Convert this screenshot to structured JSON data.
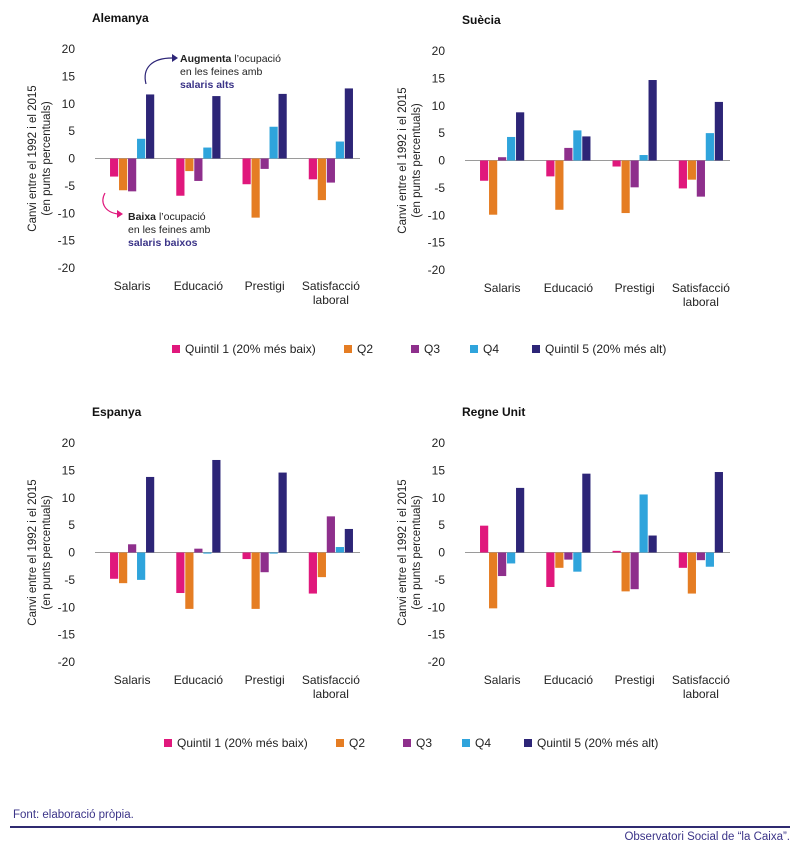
{
  "colors": {
    "q1": "#e0187c",
    "q2": "#e57d23",
    "q3": "#8e2f8c",
    "q4": "#2fa4dc",
    "q5": "#2d2577",
    "zero_line": "#9a9a9a",
    "annotation": "#3b3488"
  },
  "ylabel": [
    "Canvi entre el 1992 i el 2015",
    "(en punts percentuals)"
  ],
  "yticks": [
    20,
    15,
    10,
    5,
    0,
    -5,
    -10,
    -15,
    -20
  ],
  "categories": [
    "Salaris",
    "Educació",
    "Prestigi",
    [
      "Satisfacció",
      "laboral"
    ]
  ],
  "legend": [
    "Quintil 1 (20% més baix)",
    "Q2",
    "Q3",
    "Q4",
    "Quintil 5 (20% més alt)"
  ],
  "chart_data": [
    {
      "type": "bar",
      "title": "Alemanya",
      "categories": [
        "Salaris",
        "Educació",
        "Prestigi",
        "Satisfacció laboral"
      ],
      "ylim": [
        -20,
        20
      ],
      "series": [
        {
          "name": "Quintil 1 (20% més baix)",
          "values": [
            -3.3,
            -6.8,
            -4.7,
            -3.8
          ]
        },
        {
          "name": "Q2",
          "values": [
            -5.8,
            -2.3,
            -10.8,
            -7.6
          ]
        },
        {
          "name": "Q3",
          "values": [
            -6.0,
            -4.1,
            -1.9,
            -4.4
          ]
        },
        {
          "name": "Q4",
          "values": [
            3.6,
            2.0,
            5.8,
            3.1
          ]
        },
        {
          "name": "Quintil 5 (20% més alt)",
          "values": [
            11.7,
            11.4,
            11.8,
            12.8
          ]
        }
      ]
    },
    {
      "type": "bar",
      "title": "Suècia",
      "categories": [
        "Salaris",
        "Educació",
        "Prestigi",
        "Satisfacció laboral"
      ],
      "ylim": [
        -20,
        20
      ],
      "series": [
        {
          "name": "Quintil 1 (20% més baix)",
          "values": [
            -3.7,
            -2.9,
            -1.1,
            -5.1
          ]
        },
        {
          "name": "Q2",
          "values": [
            -9.9,
            -9.0,
            -9.6,
            -3.5
          ]
        },
        {
          "name": "Q3",
          "values": [
            0.6,
            2.3,
            -4.9,
            -6.6
          ]
        },
        {
          "name": "Q4",
          "values": [
            4.3,
            5.5,
            1.0,
            5.0
          ]
        },
        {
          "name": "Quintil 5 (20% més alt)",
          "values": [
            8.8,
            4.4,
            14.7,
            10.7
          ]
        }
      ]
    },
    {
      "type": "bar",
      "title": "Espanya",
      "categories": [
        "Salaris",
        "Educació",
        "Prestigi",
        "Satisfacció laboral"
      ],
      "ylim": [
        -20,
        20
      ],
      "series": [
        {
          "name": "Quintil 1 (20% més baix)",
          "values": [
            -4.8,
            -7.4,
            -1.2,
            -7.5
          ]
        },
        {
          "name": "Q2",
          "values": [
            -5.6,
            -10.3,
            -10.3,
            -4.5
          ]
        },
        {
          "name": "Q3",
          "values": [
            1.5,
            0.7,
            -3.6,
            6.6
          ]
        },
        {
          "name": "Q4",
          "values": [
            -5.0,
            -0.2,
            -0.2,
            1.0
          ]
        },
        {
          "name": "Quintil 5 (20% més alt)",
          "values": [
            13.8,
            16.9,
            14.6,
            4.3
          ]
        }
      ]
    },
    {
      "type": "bar",
      "title": "Regne Unit",
      "categories": [
        "Salaris",
        "Educació",
        "Prestigi",
        "Satisfacció laboral"
      ],
      "ylim": [
        -20,
        20
      ],
      "series": [
        {
          "name": "Quintil 1 (20% més baix)",
          "values": [
            4.9,
            -6.3,
            0.3,
            -2.8
          ]
        },
        {
          "name": "Q2",
          "values": [
            -10.2,
            -2.8,
            -7.1,
            -7.5
          ]
        },
        {
          "name": "Q3",
          "values": [
            -4.3,
            -1.3,
            -6.7,
            -1.4
          ]
        },
        {
          "name": "Q4",
          "values": [
            -2.0,
            -3.5,
            10.6,
            -2.6
          ]
        },
        {
          "name": "Quintil 5 (20% més alt)",
          "values": [
            11.8,
            14.4,
            3.1,
            14.7
          ]
        }
      ]
    }
  ],
  "annotations": {
    "up": {
      "bold": "Augmenta",
      "rest": " l’ocupació",
      "line2": "en les feines amb",
      "line3": "salaris alts"
    },
    "down": {
      "bold": "Baixa",
      "rest": " l’ocupació",
      "line2": "en les feines amb",
      "line3": "salaris baixos"
    }
  },
  "footer": {
    "source": "Font: elaboració pròpia.",
    "credit": "Observatori Social de “la Caixa”."
  }
}
